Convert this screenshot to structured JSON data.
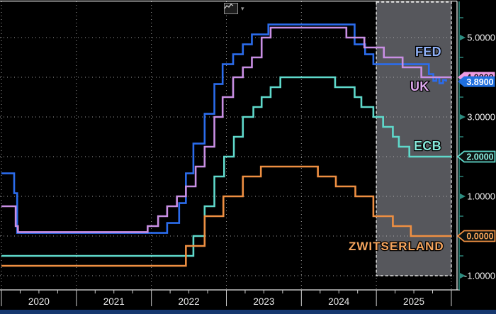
{
  "window": {
    "background": "#000000",
    "toolbar": {
      "chart_type_button": "line-chart-icon",
      "caret_glyph": "▾"
    },
    "bottom_bar_color": "#16386f"
  },
  "chart_data": {
    "type": "line",
    "line_style": "step-after",
    "title": "",
    "legend_position": "inline-labels",
    "x_axis": {
      "labels": [
        "2020",
        "2021",
        "2022",
        "2023",
        "2024",
        "2025"
      ],
      "start_year": 2020,
      "end_year": 2026,
      "minor_ticks": "quarterly"
    },
    "y_axis": {
      "side": "right",
      "range": [
        -1.35,
        5.9
      ],
      "grid_step": 1,
      "minor_tick_step": 0.5,
      "axis_color": "#2d8c80",
      "labels": [
        {
          "value": 5,
          "text": "5.0000"
        },
        {
          "value": 3,
          "text": "3.0000"
        },
        {
          "value": 1,
          "text": "1.0000"
        },
        {
          "value": -1,
          "text": "-1.0000"
        }
      ]
    },
    "grid": {
      "horizontal": true,
      "vertical": true,
      "style": "dotted",
      "color": "#bdbdbd"
    },
    "forecast_region": {
      "from_year": 2025,
      "to_year": 2026,
      "fill": "#56575c",
      "border_color": "#e0e0e0",
      "border_style": "dashed"
    },
    "series": [
      {
        "name": "FED",
        "color": "#2b6cec",
        "label_color": "#8fb0f5",
        "tag": {
          "text": "3.8900",
          "style": "solid",
          "color": "#1f6fe0",
          "text_color": "#ffffff"
        },
        "points": [
          [
            2020.0,
            1.58
          ],
          [
            2020.17,
            1.08
          ],
          [
            2020.21,
            0.08
          ],
          [
            2022.21,
            0.33
          ],
          [
            2022.37,
            0.83
          ],
          [
            2022.46,
            1.58
          ],
          [
            2022.56,
            2.33
          ],
          [
            2022.71,
            3.08
          ],
          [
            2022.84,
            3.83
          ],
          [
            2022.95,
            4.33
          ],
          [
            2023.09,
            4.58
          ],
          [
            2023.22,
            4.83
          ],
          [
            2023.34,
            5.08
          ],
          [
            2023.56,
            5.33
          ],
          [
            2024.71,
            4.83
          ],
          [
            2024.85,
            4.58
          ],
          [
            2024.96,
            4.33
          ],
          [
            2025.7,
            4.08
          ],
          [
            2025.76,
            3.91
          ],
          [
            2025.8,
            3.99
          ],
          [
            2025.84,
            3.85
          ],
          [
            2025.89,
            3.93
          ],
          [
            2025.93,
            3.89
          ]
        ]
      },
      {
        "name": "UK",
        "color": "#c98fe4",
        "label_color": "#dfa9ef",
        "tag": {
          "text": "4.0000",
          "style": "solid",
          "color": "#ef9ce2",
          "text_color": "#1b1b1b"
        },
        "points": [
          [
            2020.0,
            0.75
          ],
          [
            2020.19,
            0.25
          ],
          [
            2020.22,
            0.1
          ],
          [
            2021.95,
            0.25
          ],
          [
            2022.09,
            0.5
          ],
          [
            2022.21,
            0.75
          ],
          [
            2022.34,
            1.0
          ],
          [
            2022.46,
            1.25
          ],
          [
            2022.59,
            1.75
          ],
          [
            2022.71,
            2.25
          ],
          [
            2022.84,
            3.0
          ],
          [
            2022.95,
            3.5
          ],
          [
            2023.09,
            4.0
          ],
          [
            2023.22,
            4.25
          ],
          [
            2023.34,
            4.5
          ],
          [
            2023.47,
            5.0
          ],
          [
            2023.59,
            5.25
          ],
          [
            2024.6,
            5.0
          ],
          [
            2024.84,
            4.75
          ],
          [
            2025.1,
            4.5
          ],
          [
            2025.35,
            4.25
          ],
          [
            2025.6,
            4.0
          ],
          [
            2026.0,
            4.0
          ]
        ]
      },
      {
        "name": "ECB",
        "color": "#5fd9cb",
        "label_color": "#86e8da",
        "tag": {
          "text": "2.0000",
          "style": "outline",
          "color": "#5fd9cb",
          "text_color": "#8cf0e2"
        },
        "points": [
          [
            2020.0,
            -0.5
          ],
          [
            2022.56,
            0.0
          ],
          [
            2022.71,
            0.75
          ],
          [
            2022.84,
            1.5
          ],
          [
            2022.97,
            2.0
          ],
          [
            2023.1,
            2.5
          ],
          [
            2023.22,
            3.0
          ],
          [
            2023.36,
            3.25
          ],
          [
            2023.47,
            3.5
          ],
          [
            2023.59,
            3.75
          ],
          [
            2023.72,
            4.0
          ],
          [
            2024.45,
            3.75
          ],
          [
            2024.71,
            3.5
          ],
          [
            2024.8,
            3.25
          ],
          [
            2024.96,
            3.0
          ],
          [
            2025.09,
            2.75
          ],
          [
            2025.22,
            2.5
          ],
          [
            2025.3,
            2.25
          ],
          [
            2025.44,
            2.0
          ],
          [
            2026.0,
            2.0
          ]
        ]
      },
      {
        "name": "ZWITSERLAND",
        "color": "#ee8f42",
        "label_color": "#f6a55e",
        "tag": {
          "text": "0.0000",
          "style": "outline",
          "color": "#ee8f42",
          "text_color": "#f8a558"
        },
        "points": [
          [
            2020.0,
            -0.75
          ],
          [
            2022.46,
            -0.25
          ],
          [
            2022.71,
            0.5
          ],
          [
            2022.96,
            1.0
          ],
          [
            2023.22,
            1.5
          ],
          [
            2023.46,
            1.75
          ],
          [
            2024.22,
            1.5
          ],
          [
            2024.46,
            1.25
          ],
          [
            2024.72,
            1.0
          ],
          [
            2024.96,
            0.5
          ],
          [
            2025.22,
            0.25
          ],
          [
            2025.46,
            0.0
          ],
          [
            2026.0,
            0.0
          ]
        ]
      }
    ]
  }
}
